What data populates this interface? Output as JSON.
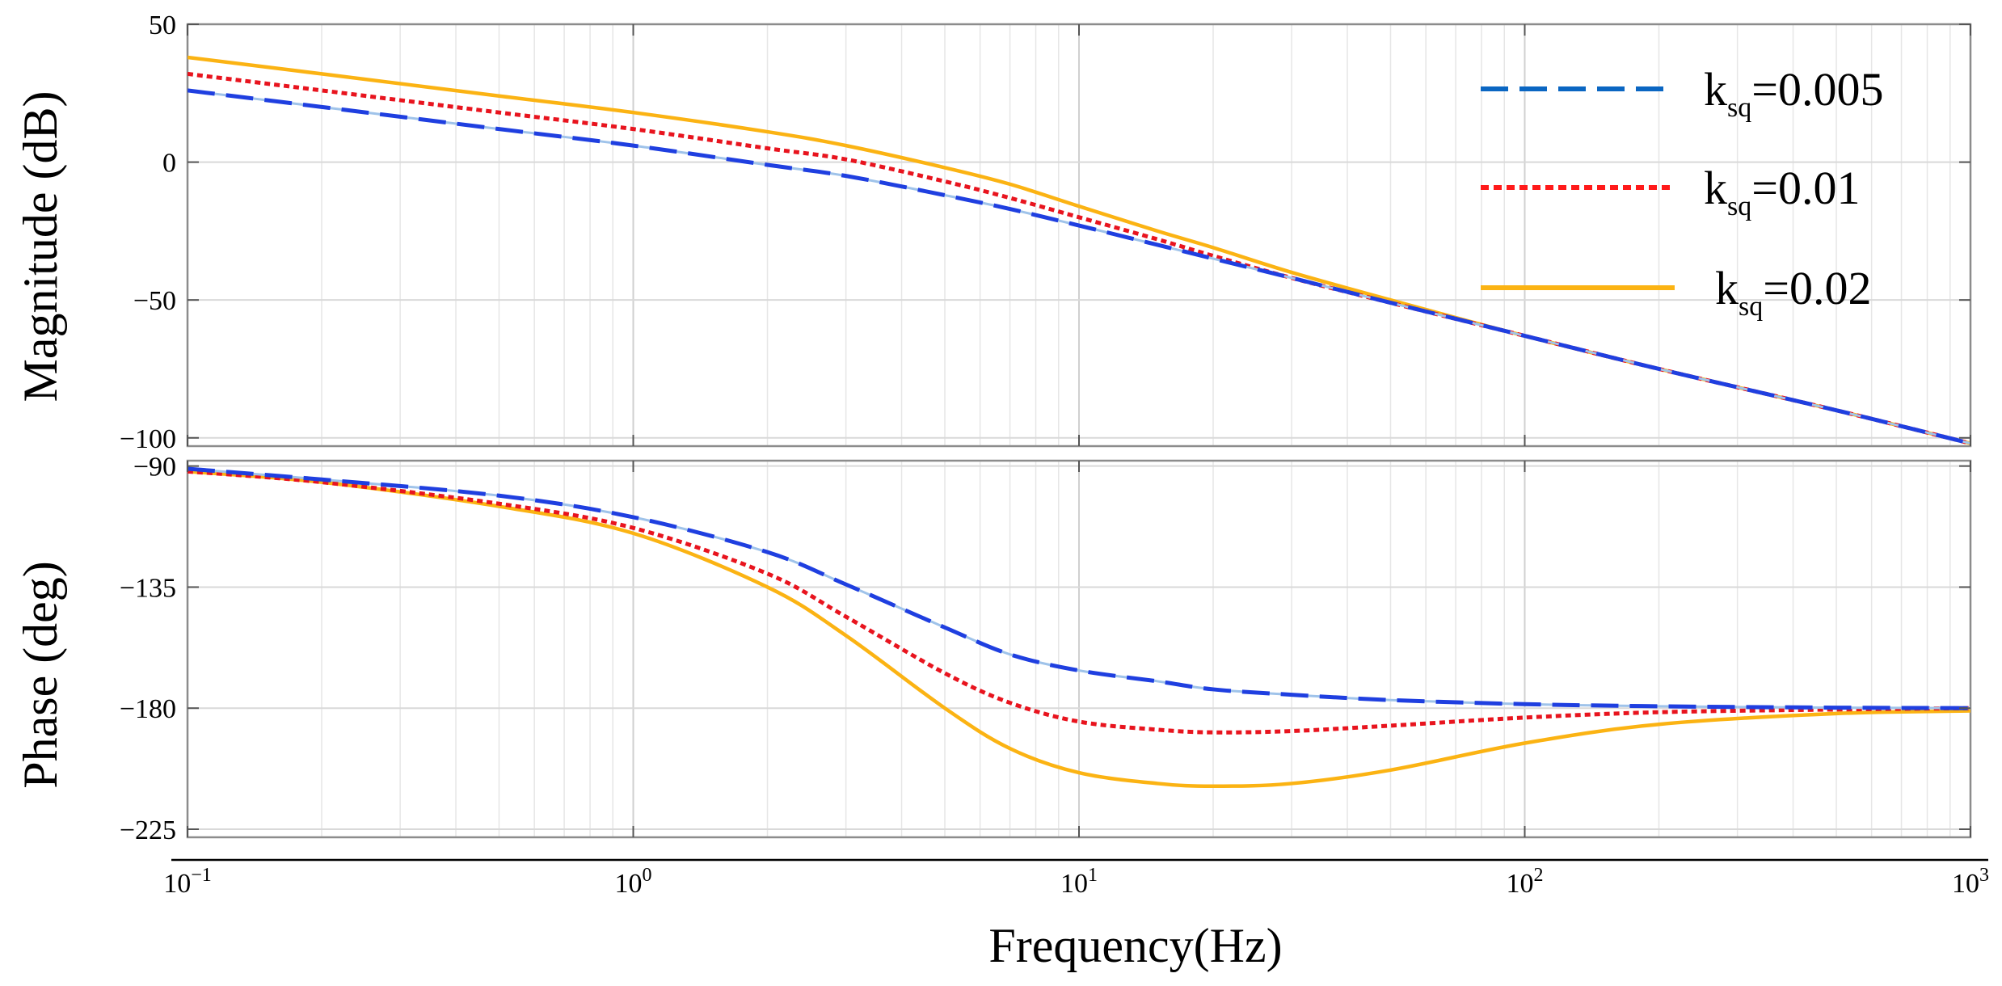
{
  "chart_data": {
    "type": "line",
    "xscale": "log",
    "xlim": [
      0.1,
      1000
    ],
    "xlabel": "Frequency(Hz)",
    "x_ticks": [
      {
        "value": 0.1,
        "base": "10",
        "exp": "−1"
      },
      {
        "value": 1,
        "base": "10",
        "exp": "0"
      },
      {
        "value": 10,
        "base": "10",
        "exp": "1"
      },
      {
        "value": 100,
        "base": "10",
        "exp": "2"
      },
      {
        "value": 1000,
        "base": "10",
        "exp": "3"
      }
    ],
    "x": [
      0.1,
      0.2,
      0.5,
      1,
      2,
      3,
      5,
      7,
      10,
      15,
      20,
      30,
      50,
      100,
      200,
      500,
      1000
    ],
    "panels": [
      {
        "name": "magnitude",
        "ylabel": "Magnitude (dB)",
        "ylim": [
          -103,
          50
        ],
        "y_ticks": [
          {
            "value": 50,
            "label": "50"
          },
          {
            "value": 0,
            "label": "0"
          },
          {
            "value": -50,
            "label": "−50"
          },
          {
            "value": -100,
            "label": "−100"
          }
        ],
        "series": [
          {
            "name": "k_sq=0.005",
            "values": [
              26,
              20,
              12,
              6,
              -1,
              -5,
              -12,
              -17,
              -23,
              -30,
              -35,
              -42,
              -51,
              -63,
              -75,
              -90,
              -102
            ]
          },
          {
            "name": "k_sq=0.01",
            "values": [
              32,
              26,
              18,
              12,
              5,
              1,
              -7,
              -13,
              -20,
              -28,
              -34,
              -42,
              -51,
              -63,
              -75,
              -90,
              -102
            ]
          },
          {
            "name": "k_sq=0.02",
            "values": [
              38,
              32,
              24,
              18,
              11,
              6,
              -2,
              -8,
              -16,
              -25,
              -31,
              -40,
              -50,
              -63,
              -75,
              -90,
              -102
            ]
          }
        ]
      },
      {
        "name": "phase",
        "ylabel": "Phase (deg)",
        "ylim": [
          -228,
          -88
        ],
        "y_ticks": [
          {
            "value": -90,
            "label": "−90"
          },
          {
            "value": -135,
            "label": "−135"
          },
          {
            "value": -180,
            "label": "−180"
          },
          {
            "value": -225,
            "label": "−225"
          }
        ],
        "series": [
          {
            "name": "k_sq=0.005",
            "values": [
              -91,
              -95,
              -101,
              -109,
              -122,
              -134,
              -150,
              -160,
              -166,
              -170,
              -173,
              -175,
              -177,
              -178.5,
              -179.3,
              -179.8,
              -180
            ]
          },
          {
            "name": "k_sq=0.01",
            "values": [
              -92,
              -96,
              -104,
              -113,
              -130,
              -146,
              -167,
              -178,
              -185,
              -188,
              -189,
              -188.5,
              -186.5,
              -183.5,
              -181.5,
              -180.5,
              -180
            ]
          },
          {
            "name": "k_sq=0.02",
            "values": [
              -92,
              -96,
              -105,
              -115,
              -135,
              -153,
              -180,
              -195,
              -204,
              -208,
              -209,
              -208,
              -203,
              -193,
              -186,
              -182,
              -181
            ]
          }
        ]
      }
    ],
    "legend": {
      "placement": "top-right",
      "entries": [
        {
          "prefix": "k",
          "sub": "sq",
          "suffix": "=0.005",
          "color": "#0a66c2",
          "style": "dashed"
        },
        {
          "prefix": "k",
          "sub": "sq",
          "suffix": "=0.01",
          "color": "#ff1a1a",
          "style": "dotted"
        },
        {
          "prefix": "k",
          "sub": "sq",
          "suffix": "=0.02",
          "color": "#fbb313",
          "style": "solid"
        }
      ]
    },
    "colors": {
      "k_sq=0.005": "#1f3fe0",
      "k_sq=0.01": "#e8141e",
      "k_sq=0.02": "#fbb313"
    }
  }
}
